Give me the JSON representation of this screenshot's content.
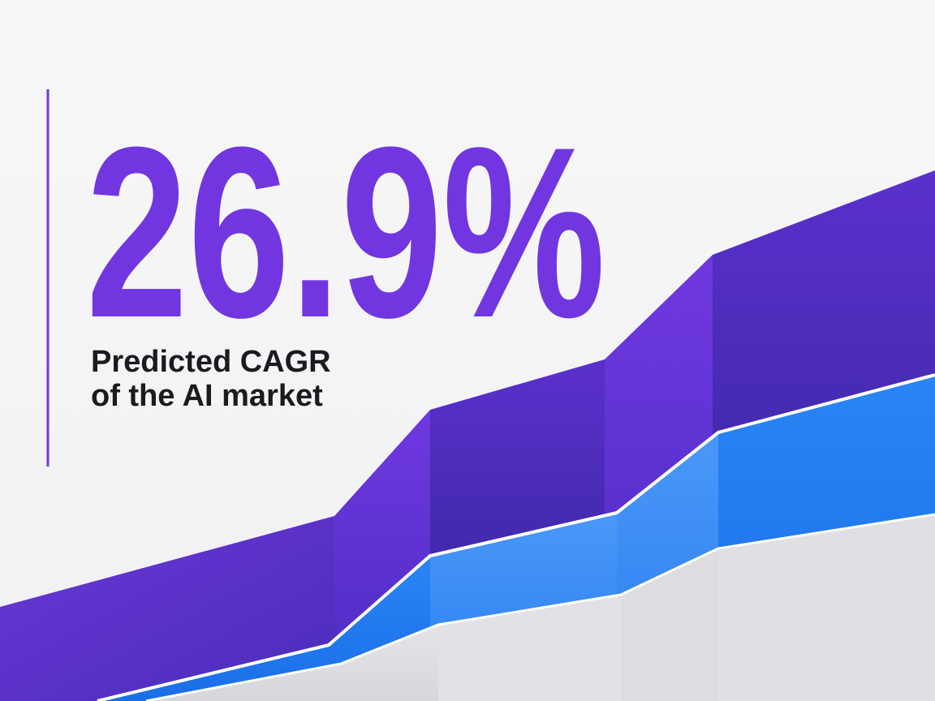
{
  "stat": {
    "value": "26.9%",
    "caption": [
      "Predicted CAGR",
      "of the AI market"
    ]
  }
}
